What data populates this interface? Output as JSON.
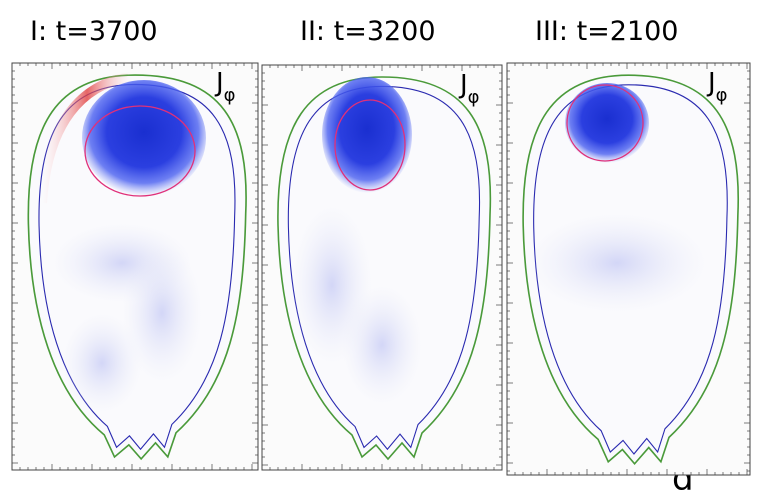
{
  "panels": [
    {
      "title": "I:  t=3700",
      "quantity": "J",
      "subscript": "φ"
    },
    {
      "title": "II:  t=3200",
      "quantity": "J",
      "subscript": "φ"
    },
    {
      "title": "III:  t=2100",
      "quantity": "J",
      "subscript": "φ"
    }
  ],
  "label": "d"
}
